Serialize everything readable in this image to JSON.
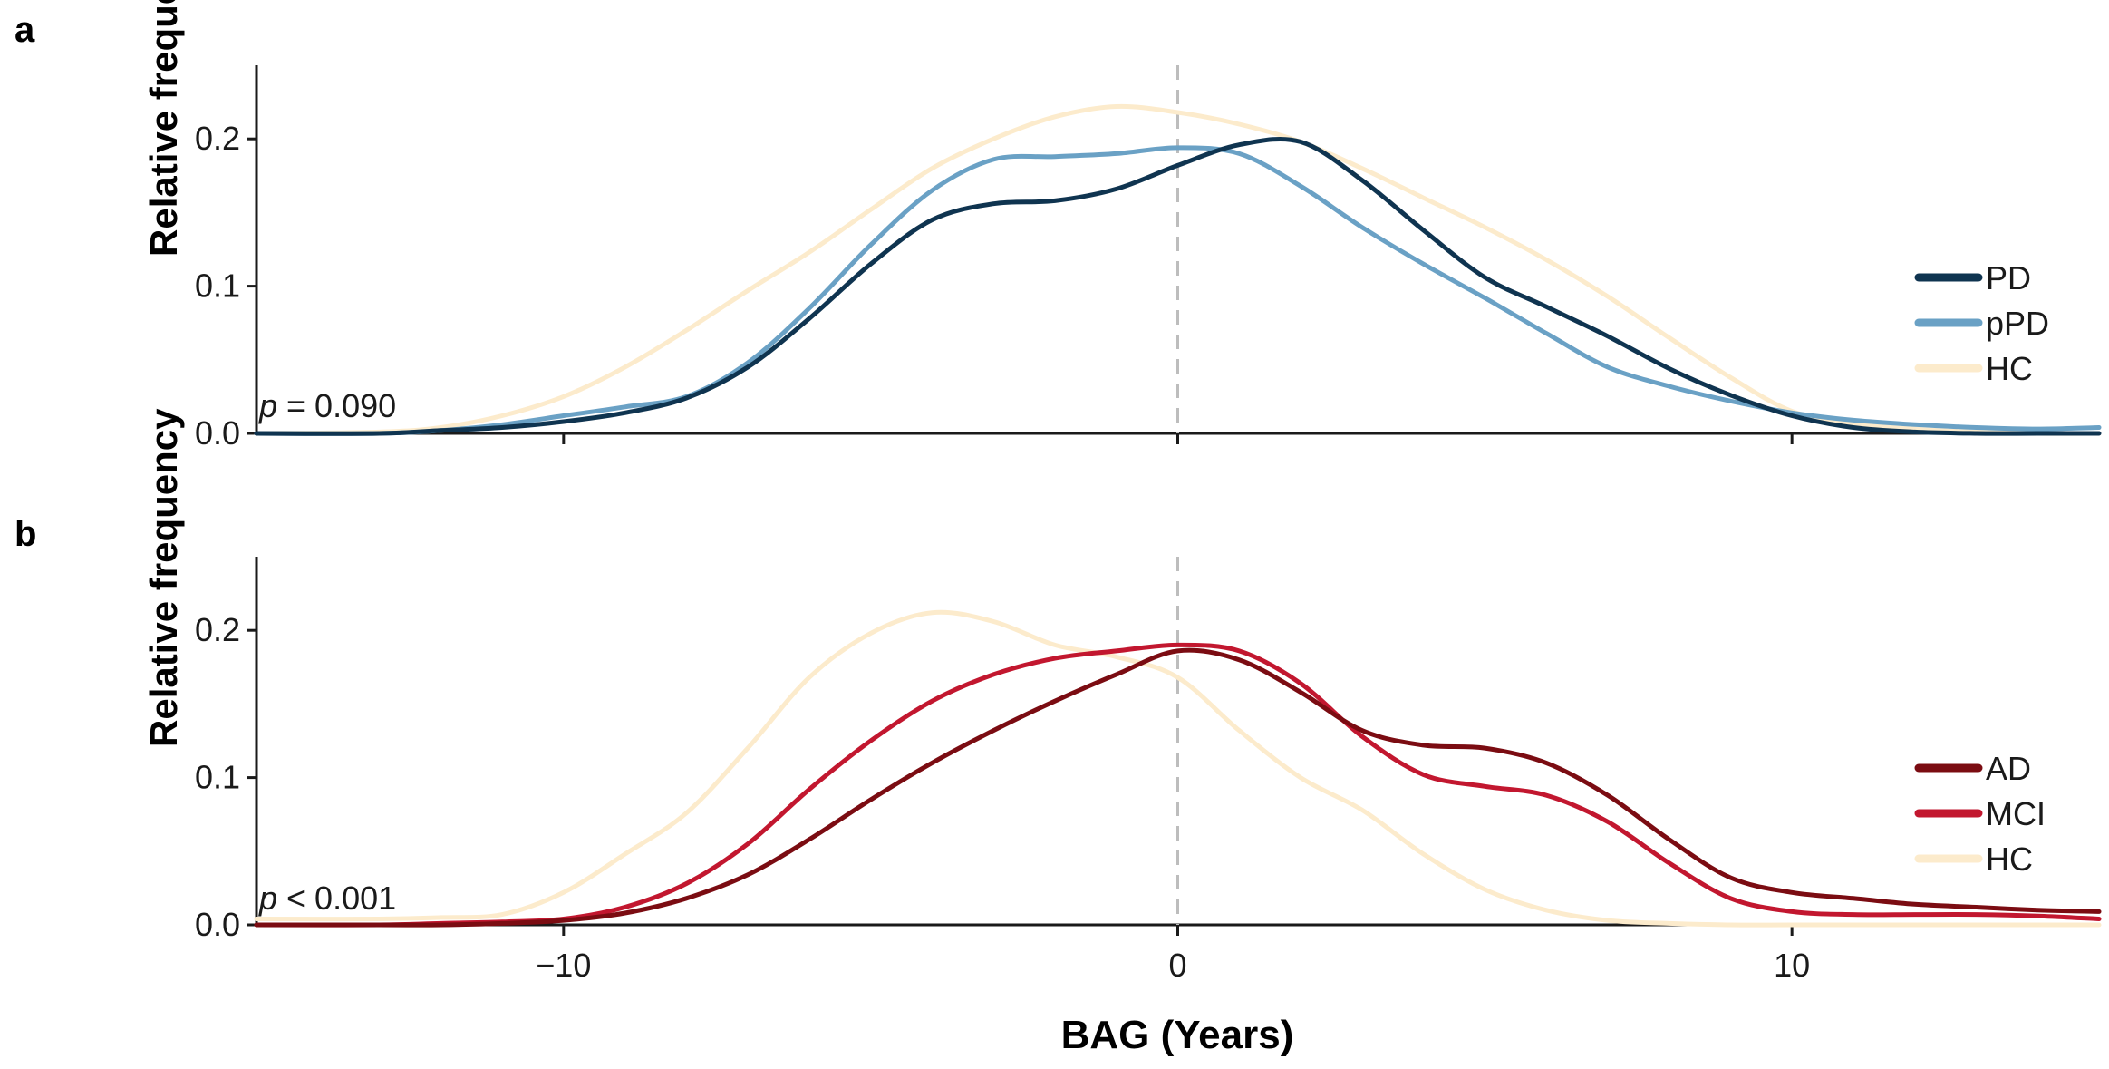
{
  "figure": {
    "xlabel": "BAG (Years)",
    "x_ticks": [
      -10,
      0,
      10
    ],
    "x_tick_labels": [
      "−10",
      "0",
      "10"
    ]
  },
  "chart_data": [
    {
      "type": "line",
      "panel": "a",
      "ylabel": "Relative frequency",
      "xlim": [
        -15,
        15
      ],
      "ylim": [
        0,
        0.25
      ],
      "y_ticks": [
        0.0,
        0.1,
        0.2
      ],
      "y_tick_labels": [
        "0.0",
        "0.1",
        "0.2"
      ],
      "vline_x": 0,
      "p_prefix": "p",
      "p_rest": " = 0.090",
      "legend_position": "right",
      "series": [
        {
          "name": "HC",
          "color": "#FCEBCC",
          "x": [
            -15,
            -13,
            -12,
            -11,
            -10,
            -9,
            -8,
            -7,
            -6,
            -5,
            -4,
            -3,
            -2,
            -1,
            0,
            1,
            2,
            3,
            4,
            5,
            6,
            7,
            8,
            9,
            10,
            11,
            12,
            13,
            14,
            15
          ],
          "y": [
            0.0,
            0.001,
            0.004,
            0.012,
            0.025,
            0.045,
            0.07,
            0.097,
            0.123,
            0.152,
            0.18,
            0.2,
            0.215,
            0.222,
            0.218,
            0.21,
            0.198,
            0.18,
            0.16,
            0.14,
            0.118,
            0.093,
            0.065,
            0.038,
            0.015,
            0.007,
            0.003,
            0.001,
            0.0,
            0.0
          ]
        },
        {
          "name": "pPD",
          "color": "#6AA1C5",
          "x": [
            -15,
            -13,
            -12,
            -11,
            -10,
            -9,
            -8,
            -7,
            -6,
            -5,
            -4,
            -3,
            -2,
            -1,
            0,
            1,
            2,
            3,
            4,
            5,
            6,
            7,
            8,
            9,
            10,
            11,
            12,
            13,
            14,
            15
          ],
          "y": [
            0.0,
            0.0,
            0.002,
            0.006,
            0.012,
            0.018,
            0.025,
            0.048,
            0.085,
            0.128,
            0.165,
            0.186,
            0.188,
            0.19,
            0.194,
            0.19,
            0.168,
            0.14,
            0.115,
            0.092,
            0.068,
            0.045,
            0.032,
            0.022,
            0.014,
            0.009,
            0.006,
            0.004,
            0.003,
            0.004
          ]
        },
        {
          "name": "PD",
          "color": "#0F3450",
          "x": [
            -15,
            -13,
            -12,
            -11,
            -10,
            -9,
            -8,
            -7,
            -6,
            -5,
            -4,
            -3,
            -2,
            -1,
            0,
            1,
            2,
            3,
            4,
            5,
            6,
            7,
            8,
            9,
            10,
            11,
            12,
            13,
            14,
            15
          ],
          "y": [
            0.0,
            0.0,
            0.002,
            0.004,
            0.008,
            0.014,
            0.024,
            0.045,
            0.078,
            0.115,
            0.145,
            0.156,
            0.158,
            0.166,
            0.182,
            0.196,
            0.198,
            0.172,
            0.138,
            0.106,
            0.086,
            0.066,
            0.044,
            0.026,
            0.012,
            0.004,
            0.001,
            0.0,
            0.0,
            0.0
          ]
        }
      ]
    },
    {
      "type": "line",
      "panel": "b",
      "ylabel": "Relative frequency",
      "xlim": [
        -15,
        15
      ],
      "ylim": [
        0,
        0.25
      ],
      "y_ticks": [
        0.0,
        0.1,
        0.2
      ],
      "y_tick_labels": [
        "0.0",
        "0.1",
        "0.2"
      ],
      "vline_x": 0,
      "p_prefix": "p",
      "p_rest": " < 0.001",
      "legend_position": "right",
      "series": [
        {
          "name": "HC",
          "color": "#FCEBCC",
          "x": [
            -15,
            -13,
            -12,
            -11,
            -10,
            -9,
            -8,
            -7,
            -6,
            -5,
            -4,
            -3,
            -2,
            -1,
            0,
            1,
            2,
            3,
            4,
            5,
            6,
            7,
            8,
            9,
            10,
            11,
            12,
            13,
            14,
            15
          ],
          "y": [
            0.004,
            0.004,
            0.005,
            0.007,
            0.022,
            0.048,
            0.076,
            0.12,
            0.168,
            0.198,
            0.212,
            0.206,
            0.19,
            0.182,
            0.168,
            0.132,
            0.1,
            0.078,
            0.048,
            0.024,
            0.01,
            0.003,
            0.001,
            0.0,
            0.0,
            0.0,
            0.0,
            0.0,
            0.0,
            0.0
          ]
        },
        {
          "name": "MCI",
          "color": "#C2172F",
          "x": [
            -15,
            -13,
            -12,
            -11,
            -10,
            -9,
            -8,
            -7,
            -6,
            -5,
            -4,
            -3,
            -2,
            -1,
            0,
            1,
            2,
            3,
            4,
            5,
            6,
            7,
            8,
            9,
            10,
            11,
            12,
            13,
            14,
            15
          ],
          "y": [
            0.0,
            0.0,
            0.001,
            0.002,
            0.004,
            0.012,
            0.028,
            0.055,
            0.092,
            0.125,
            0.152,
            0.17,
            0.181,
            0.186,
            0.19,
            0.186,
            0.164,
            0.128,
            0.102,
            0.094,
            0.088,
            0.07,
            0.042,
            0.018,
            0.009,
            0.007,
            0.007,
            0.007,
            0.006,
            0.004
          ]
        },
        {
          "name": "AD",
          "color": "#7B0C12",
          "x": [
            -15,
            -13,
            -12,
            -11,
            -10,
            -9,
            -8,
            -7,
            -6,
            -5,
            -4,
            -3,
            -2,
            -1,
            0,
            1,
            2,
            3,
            4,
            5,
            6,
            7,
            8,
            9,
            10,
            11,
            12,
            13,
            14,
            15
          ],
          "y": [
            0.0,
            0.0,
            0.0,
            0.001,
            0.003,
            0.008,
            0.018,
            0.034,
            0.058,
            0.085,
            0.11,
            0.132,
            0.152,
            0.17,
            0.186,
            0.18,
            0.158,
            0.132,
            0.122,
            0.12,
            0.11,
            0.088,
            0.058,
            0.032,
            0.022,
            0.018,
            0.014,
            0.012,
            0.01,
            0.009
          ]
        }
      ]
    }
  ]
}
